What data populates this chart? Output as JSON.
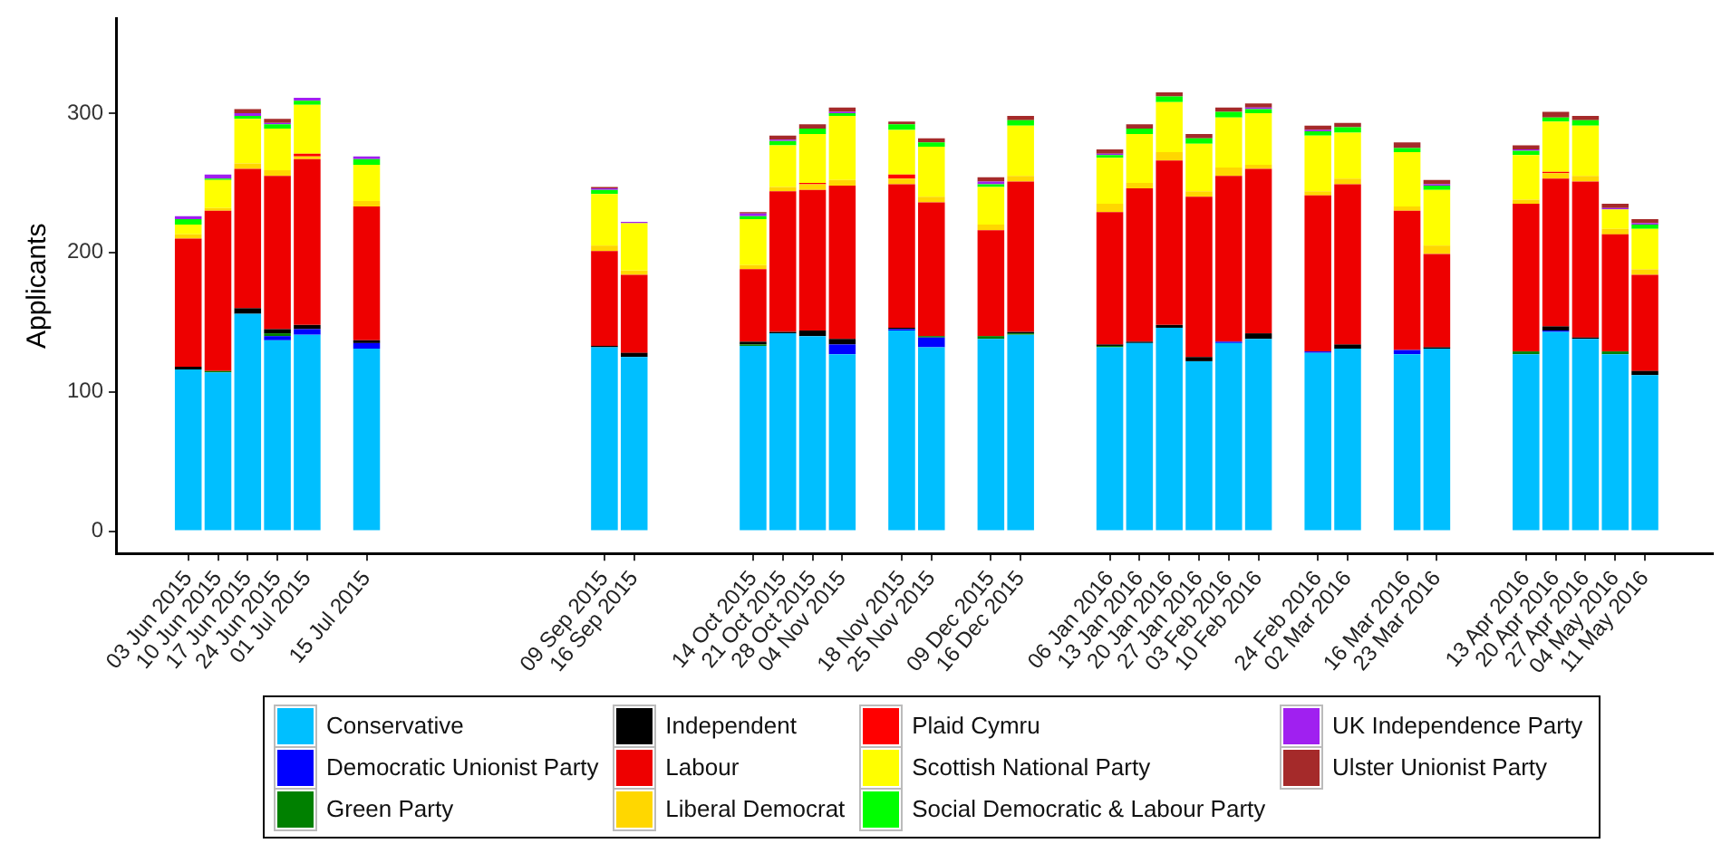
{
  "chart_data": {
    "type": "bar",
    "stacked": true,
    "ylabel": "Applicants",
    "legend": "bottom",
    "x": [
      "2015-06-03",
      "2015-06-10",
      "2015-06-17",
      "2015-06-24",
      "2015-07-01",
      "2015-07-15",
      "2015-09-09",
      "2015-09-16",
      "2015-10-14",
      "2015-10-21",
      "2015-10-28",
      "2015-11-04",
      "2015-11-18",
      "2015-11-25",
      "2015-12-09",
      "2015-12-16",
      "2016-01-06",
      "2016-01-13",
      "2016-01-20",
      "2016-01-27",
      "2016-02-03",
      "2016-02-10",
      "2016-02-24",
      "2016-03-02",
      "2016-03-16",
      "2016-03-23",
      "2016-04-13",
      "2016-04-20",
      "2016-04-27",
      "2016-05-04",
      "2016-05-11"
    ],
    "xlim": [
      "2015-05-17",
      "2016-05-27"
    ],
    "xticks": [
      {
        "value": "2015-06-03",
        "label": "03 Jun 2015"
      },
      {
        "value": "2015-06-10",
        "label": "10 Jun 2015"
      },
      {
        "value": "2015-06-17",
        "label": "17 Jun 2015"
      },
      {
        "value": "2015-06-24",
        "label": "24 Jun 2015"
      },
      {
        "value": "2015-07-01",
        "label": "01 Jul 2015"
      },
      {
        "value": "2015-07-15",
        "label": "15 Jul 2015"
      },
      {
        "value": "2015-09-09",
        "label": "09 Sep 2015"
      },
      {
        "value": "2015-09-16",
        "label": "16 Sep 2015"
      },
      {
        "value": "2015-10-14",
        "label": "14 Oct 2015"
      },
      {
        "value": "2015-10-21",
        "label": "21 Oct 2015"
      },
      {
        "value": "2015-10-28",
        "label": "28 Oct 2015"
      },
      {
        "value": "2015-11-04",
        "label": "04 Nov 2015"
      },
      {
        "value": "2015-11-18",
        "label": "18 Nov 2015"
      },
      {
        "value": "2015-11-25",
        "label": "25 Nov 2015"
      },
      {
        "value": "2015-12-09",
        "label": "09 Dec 2015"
      },
      {
        "value": "2015-12-16",
        "label": "16 Dec 2015"
      },
      {
        "value": "2016-01-06",
        "label": "06 Jan 2016"
      },
      {
        "value": "2016-01-13",
        "label": "13 Jan 2016"
      },
      {
        "value": "2016-01-20",
        "label": "20 Jan 2016"
      },
      {
        "value": "2016-01-27",
        "label": "27 Jan 2016"
      },
      {
        "value": "2016-02-03",
        "label": "03 Feb 2016"
      },
      {
        "value": "2016-02-10",
        "label": "10 Feb 2016"
      },
      {
        "value": "2016-02-24",
        "label": "24 Feb 2016"
      },
      {
        "value": "2016-03-02",
        "label": "02 Mar 2016"
      },
      {
        "value": "2016-03-16",
        "label": "16 Mar 2016"
      },
      {
        "value": "2016-03-23",
        "label": "23 Mar 2016"
      },
      {
        "value": "2016-04-13",
        "label": "13 Apr 2016"
      },
      {
        "value": "2016-04-20",
        "label": "20 Apr 2016"
      },
      {
        "value": "2016-04-27",
        "label": "27 Apr 2016"
      },
      {
        "value": "2016-05-04",
        "label": "04 May 2016"
      },
      {
        "value": "2016-05-11",
        "label": "11 May 2016"
      }
    ],
    "ylim": [
      -16,
      368
    ],
    "yticks": [
      0,
      100,
      200,
      300
    ],
    "series": [
      {
        "name": "Conservative",
        "color": "#00bfff",
        "values": [
          116,
          114,
          156,
          137,
          141,
          131,
          132,
          125,
          133,
          142,
          140,
          127,
          144,
          132,
          138,
          141,
          132,
          135,
          146,
          122,
          135,
          138,
          128,
          131,
          127,
          131,
          127,
          143,
          138,
          127,
          112
        ]
      },
      {
        "name": "Democratic Unionist Party",
        "color": "#0000ff",
        "values": [
          0,
          0,
          0,
          3,
          4,
          4,
          0,
          0,
          0,
          0,
          0,
          7,
          1,
          7,
          0,
          0,
          0,
          0,
          0,
          0,
          1,
          0,
          1,
          0,
          3,
          0,
          0,
          1,
          0,
          0,
          0
        ]
      },
      {
        "name": "Green Party",
        "color": "#008000",
        "values": [
          0,
          1,
          0,
          2,
          0,
          0,
          0,
          0,
          1,
          0,
          0,
          0,
          0,
          1,
          2,
          1,
          1,
          0,
          0,
          0,
          0,
          0,
          0,
          0,
          0,
          0,
          2,
          0,
          0,
          2,
          0
        ]
      },
      {
        "name": "Independent",
        "color": "#000000",
        "values": [
          2,
          0,
          4,
          3,
          3,
          2,
          1,
          3,
          2,
          1,
          4,
          4,
          1,
          0,
          0,
          1,
          1,
          1,
          2,
          3,
          0,
          4,
          0,
          3,
          0,
          1,
          0,
          3,
          1,
          0,
          3
        ]
      },
      {
        "name": "Labour",
        "color": "#ee0000",
        "values": [
          92,
          115,
          100,
          110,
          119,
          96,
          68,
          56,
          52,
          101,
          101,
          110,
          103,
          96,
          76,
          108,
          95,
          110,
          118,
          115,
          119,
          118,
          112,
          115,
          100,
          67,
          106,
          106,
          112,
          84,
          69
        ]
      },
      {
        "name": "Liberal Democrat",
        "color": "#ffd700",
        "values": [
          3,
          2,
          4,
          4,
          2,
          4,
          4,
          3,
          3,
          3,
          4,
          4,
          4,
          4,
          4,
          4,
          6,
          4,
          6,
          4,
          6,
          3,
          3,
          4,
          3,
          6,
          3,
          4,
          4,
          4,
          4
        ]
      },
      {
        "name": "Plaid Cymru",
        "color": "#ff0000",
        "values": [
          0,
          0,
          0,
          0,
          2,
          0,
          0,
          0,
          0,
          0,
          1,
          0,
          3,
          0,
          0,
          0,
          0,
          0,
          0,
          0,
          0,
          0,
          0,
          0,
          0,
          0,
          0,
          1,
          0,
          0,
          0
        ]
      },
      {
        "name": "Scottish National Party",
        "color": "#ffff00",
        "values": [
          7,
          20,
          32,
          30,
          35,
          26,
          37,
          34,
          33,
          30,
          35,
          46,
          32,
          36,
          27,
          36,
          33,
          35,
          36,
          34,
          36,
          37,
          40,
          33,
          39,
          40,
          32,
          36,
          36,
          14,
          29
        ]
      },
      {
        "name": "Social Democratic & Labour Party",
        "color": "#00ff00",
        "values": [
          4,
          1,
          2,
          3,
          3,
          4,
          3,
          0,
          2,
          3,
          4,
          2,
          4,
          3,
          2,
          4,
          2,
          4,
          4,
          4,
          4,
          3,
          3,
          4,
          3,
          3,
          3,
          3,
          4,
          0,
          3
        ]
      },
      {
        "name": "UK Independence Party",
        "color": "#a020f0",
        "values": [
          2,
          3,
          2,
          1,
          2,
          2,
          1,
          1,
          2,
          1,
          0,
          1,
          0,
          0,
          2,
          0,
          1,
          0,
          0,
          0,
          0,
          1,
          1,
          0,
          0,
          1,
          1,
          0,
          0,
          1,
          1
        ]
      },
      {
        "name": "Ulster Unionist Party",
        "color": "#a52a2a",
        "values": [
          0,
          0,
          3,
          3,
          0,
          0,
          1,
          0,
          1,
          3,
          3,
          3,
          2,
          3,
          3,
          3,
          3,
          3,
          3,
          3,
          3,
          3,
          3,
          3,
          4,
          3,
          3,
          4,
          3,
          3,
          3
        ]
      }
    ]
  }
}
